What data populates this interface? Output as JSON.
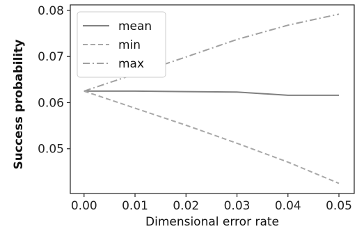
{
  "chart_data": {
    "type": "line",
    "title": "",
    "xlabel": "Dimensional error rate",
    "ylabel": "Success probability",
    "x": [
      0.0,
      0.01,
      0.02,
      0.03,
      0.04,
      0.05
    ],
    "x_tick_labels": [
      "0.00",
      "0.01",
      "0.02",
      "0.03",
      "0.04",
      "0.05"
    ],
    "y_ticks": [
      0.05,
      0.06,
      0.07,
      0.08
    ],
    "y_tick_labels": [
      "0.05",
      "0.06",
      "0.07",
      "0.08"
    ],
    "xlim": [
      -0.0027,
      0.053
    ],
    "ylim": [
      0.0403,
      0.0812
    ],
    "grid": false,
    "legend_position": "upper-left",
    "series": [
      {
        "name": "mean",
        "style": "solid",
        "color": "#808080",
        "values": [
          0.0625,
          0.0625,
          0.0624,
          0.0623,
          0.0616,
          0.0616
        ]
      },
      {
        "name": "min",
        "style": "dashed",
        "color": "#a8a8a8",
        "values": [
          0.0625,
          0.0588,
          0.0551,
          0.0512,
          0.0471,
          0.0425
        ]
      },
      {
        "name": "max",
        "style": "dashdot",
        "color": "#a0a0a0",
        "values": [
          0.0625,
          0.0662,
          0.0699,
          0.0737,
          0.0768,
          0.0792
        ]
      }
    ]
  }
}
